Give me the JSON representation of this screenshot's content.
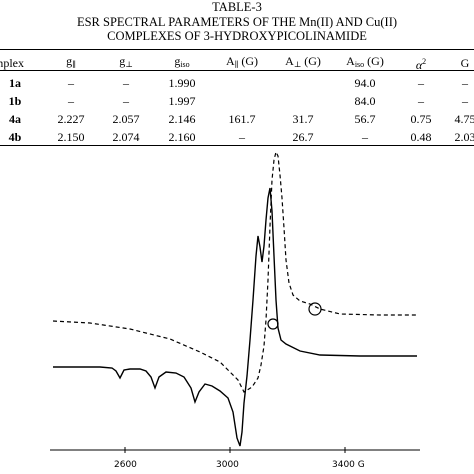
{
  "table": {
    "label": "TABLE-3",
    "title_line1": "ESR SPECTRAL PARAMETERS OF THE Mn(II) AND Cu(II)",
    "title_line2": "COMPLEXES OF 3-HYDROXYPICOLINAMIDE",
    "headers": {
      "complex": "omplex",
      "g_par": "g",
      "g_par_sub": "∥",
      "g_perp": "g",
      "g_perp_sub": "⊥",
      "g_iso": "g",
      "g_iso_sub": "iso",
      "a_par": "A",
      "a_par_sub": "∥",
      "a_par_unit": " (G)",
      "a_perp": "A",
      "a_perp_sub": "⊥",
      "a_perp_unit": " (G)",
      "a_iso": "A",
      "a_iso_sub": "iso",
      "a_iso_unit": " (G)",
      "alpha": "α",
      "alpha_sup": "2",
      "G": "G"
    },
    "rows": [
      {
        "complex": "1a",
        "g_par": "–",
        "g_perp": "–",
        "g_iso": "1.990",
        "a_par": "",
        "a_perp": "",
        "a_iso": "94.0",
        "alpha": "–",
        "G": "–"
      },
      {
        "complex": "1b",
        "g_par": "–",
        "g_perp": "–",
        "g_iso": "1.997",
        "a_par": "",
        "a_perp": "",
        "a_iso": "84.0",
        "alpha": "–",
        "G": "–"
      },
      {
        "complex": "4a",
        "g_par": "2.227",
        "g_perp": "2.057",
        "g_iso": "2.146",
        "a_par": "161.7",
        "a_perp": "31.7",
        "a_iso": "56.7",
        "alpha": "0.75",
        "G": "4.75"
      },
      {
        "complex": "4b",
        "g_par": "2.150",
        "g_perp": "2.074",
        "g_iso": "2.160",
        "a_par": "–",
        "a_perp": "26.7",
        "a_iso": "–",
        "alpha": "0.48",
        "G": "2.03"
      }
    ]
  },
  "spectrum": {
    "x_ticks": [
      "2600",
      "3000",
      "3400 G"
    ]
  }
}
